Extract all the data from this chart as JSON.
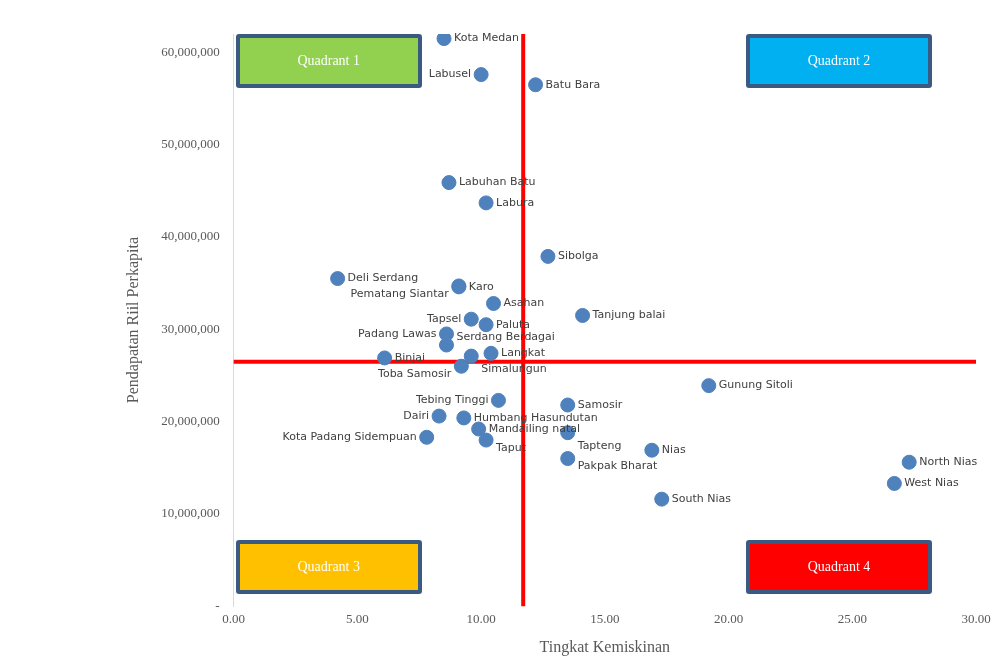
{
  "chart_data": {
    "type": "scatter",
    "xlabel": "Tingkat Kemiskinan",
    "ylabel": "Pendapatan Riil Perkapita",
    "xlim": [
      0,
      30
    ],
    "xticks": [
      {
        "value": 0,
        "label": "0.00"
      },
      {
        "value": 5,
        "label": "5.00"
      },
      {
        "value": 10,
        "label": "10.00"
      },
      {
        "value": 15,
        "label": "15.00"
      },
      {
        "value": 20,
        "label": "20.00"
      },
      {
        "value": 25,
        "label": "25.00"
      },
      {
        "value": 30,
        "label": "30.00"
      }
    ],
    "ylim": [
      0,
      62000000
    ],
    "yticks": [
      {
        "value": 0,
        "label": "-"
      },
      {
        "value": 10000000,
        "label": "10,000,000"
      },
      {
        "value": 20000000,
        "label": "20,000,000"
      },
      {
        "value": 30000000,
        "label": "30,000,000"
      },
      {
        "value": 40000000,
        "label": "40,000,000"
      },
      {
        "value": 50000000,
        "label": "50,000,000"
      },
      {
        "value": 60000000,
        "label": "60,000,000"
      }
    ],
    "grid": false,
    "legend": false,
    "marker": "circle",
    "ref_lines": [
      {
        "axis": "x",
        "value": 11.7,
        "color": "#ff0000"
      },
      {
        "axis": "y",
        "value": 26500000,
        "color": "#ff0000"
      }
    ],
    "annotations": [
      "Quadrant 1",
      "Quadrant 2",
      "Quadrant 3",
      "Quadrant 4"
    ],
    "series": [
      {
        "name": "Kota Medan",
        "color": "#4f81bd",
        "x": [
          8.5
        ],
        "values": [
          61500000
        ]
      },
      {
        "name": "Labusel",
        "color": "#4f81bd",
        "x": [
          10.0
        ],
        "values": [
          57600000
        ]
      },
      {
        "name": "Batu Bara",
        "color": "#4f81bd",
        "x": [
          12.2
        ],
        "values": [
          56500000
        ]
      },
      {
        "name": "Labuhan Batu",
        "color": "#4f81bd",
        "x": [
          8.7
        ],
        "values": [
          45900000
        ]
      },
      {
        "name": "Labura",
        "color": "#4f81bd",
        "x": [
          10.2
        ],
        "values": [
          43700000
        ]
      },
      {
        "name": "Sibolga",
        "color": "#4f81bd",
        "x": [
          12.7
        ],
        "values": [
          37900000
        ]
      },
      {
        "name": "Deli Serdang",
        "color": "#4f81bd",
        "x": [
          4.2
        ],
        "values": [
          35500000
        ]
      },
      {
        "name": "Karo",
        "color": "#4f81bd",
        "x": [
          9.1
        ],
        "values": [
          34600000
        ]
      },
      {
        "name": "Pematang Siantar",
        "color": "#4f81bd",
        "x": [
          9.1
        ],
        "values": [
          34700000
        ]
      },
      {
        "name": "Asahan",
        "color": "#4f81bd",
        "x": [
          10.5
        ],
        "values": [
          32800000
        ]
      },
      {
        "name": "Tanjung balai",
        "color": "#4f81bd",
        "x": [
          14.1
        ],
        "values": [
          31500000
        ]
      },
      {
        "name": "Tapsel",
        "color": "#4f81bd",
        "x": [
          9.6
        ],
        "values": [
          31100000
        ]
      },
      {
        "name": "Paluta",
        "color": "#4f81bd",
        "x": [
          10.2
        ],
        "values": [
          30500000
        ]
      },
      {
        "name": "Padang Lawas",
        "color": "#4f81bd",
        "x": [
          8.6
        ],
        "values": [
          29500000
        ]
      },
      {
        "name": "Serdang Berdagai",
        "color": "#4f81bd",
        "x": [
          8.6
        ],
        "values": [
          28300000
        ]
      },
      {
        "name": "Binjai",
        "color": "#4f81bd",
        "x": [
          6.1
        ],
        "values": [
          26900000
        ]
      },
      {
        "name": "Simalungun",
        "color": "#4f81bd",
        "x": [
          9.6
        ],
        "values": [
          27100000
        ]
      },
      {
        "name": "Langkat",
        "color": "#4f81bd",
        "x": [
          10.4
        ],
        "values": [
          27400000
        ]
      },
      {
        "name": "Toba Samosir",
        "color": "#4f81bd",
        "x": [
          9.2
        ],
        "values": [
          26000000
        ]
      },
      {
        "name": "Gunung Sitoli",
        "color": "#4f81bd",
        "x": [
          19.2
        ],
        "values": [
          23900000
        ]
      },
      {
        "name": "Tebing Tinggi",
        "color": "#4f81bd",
        "x": [
          10.7
        ],
        "values": [
          22300000
        ]
      },
      {
        "name": "Samosir",
        "color": "#4f81bd",
        "x": [
          13.5
        ],
        "values": [
          21800000
        ]
      },
      {
        "name": "Dairi",
        "color": "#4f81bd",
        "x": [
          8.3
        ],
        "values": [
          20600000
        ]
      },
      {
        "name": "Humbang Hasundutan",
        "color": "#4f81bd",
        "x": [
          9.3
        ],
        "values": [
          20400000
        ]
      },
      {
        "name": "Mandailing natal",
        "color": "#4f81bd",
        "x": [
          9.9
        ],
        "values": [
          19200000
        ]
      },
      {
        "name": "Kota Padang Sidempuan",
        "color": "#4f81bd",
        "x": [
          7.8
        ],
        "values": [
          18300000
        ]
      },
      {
        "name": "Taput",
        "color": "#4f81bd",
        "x": [
          10.2
        ],
        "values": [
          18000000
        ]
      },
      {
        "name": "Tapteng",
        "color": "#4f81bd",
        "x": [
          13.5
        ],
        "values": [
          18800000
        ]
      },
      {
        "name": "Nias",
        "color": "#4f81bd",
        "x": [
          16.9
        ],
        "values": [
          16900000
        ]
      },
      {
        "name": "Pakpak Bharat",
        "color": "#4f81bd",
        "x": [
          13.5
        ],
        "values": [
          16000000
        ]
      },
      {
        "name": "North Nias",
        "color": "#4f81bd",
        "x": [
          27.3
        ],
        "values": [
          15600000
        ]
      },
      {
        "name": "West Nias",
        "color": "#4f81bd",
        "x": [
          26.7
        ],
        "values": [
          13300000
        ]
      },
      {
        "name": "South Nias",
        "color": "#4f81bd",
        "x": [
          17.3
        ],
        "values": [
          11600000
        ]
      }
    ]
  }
}
